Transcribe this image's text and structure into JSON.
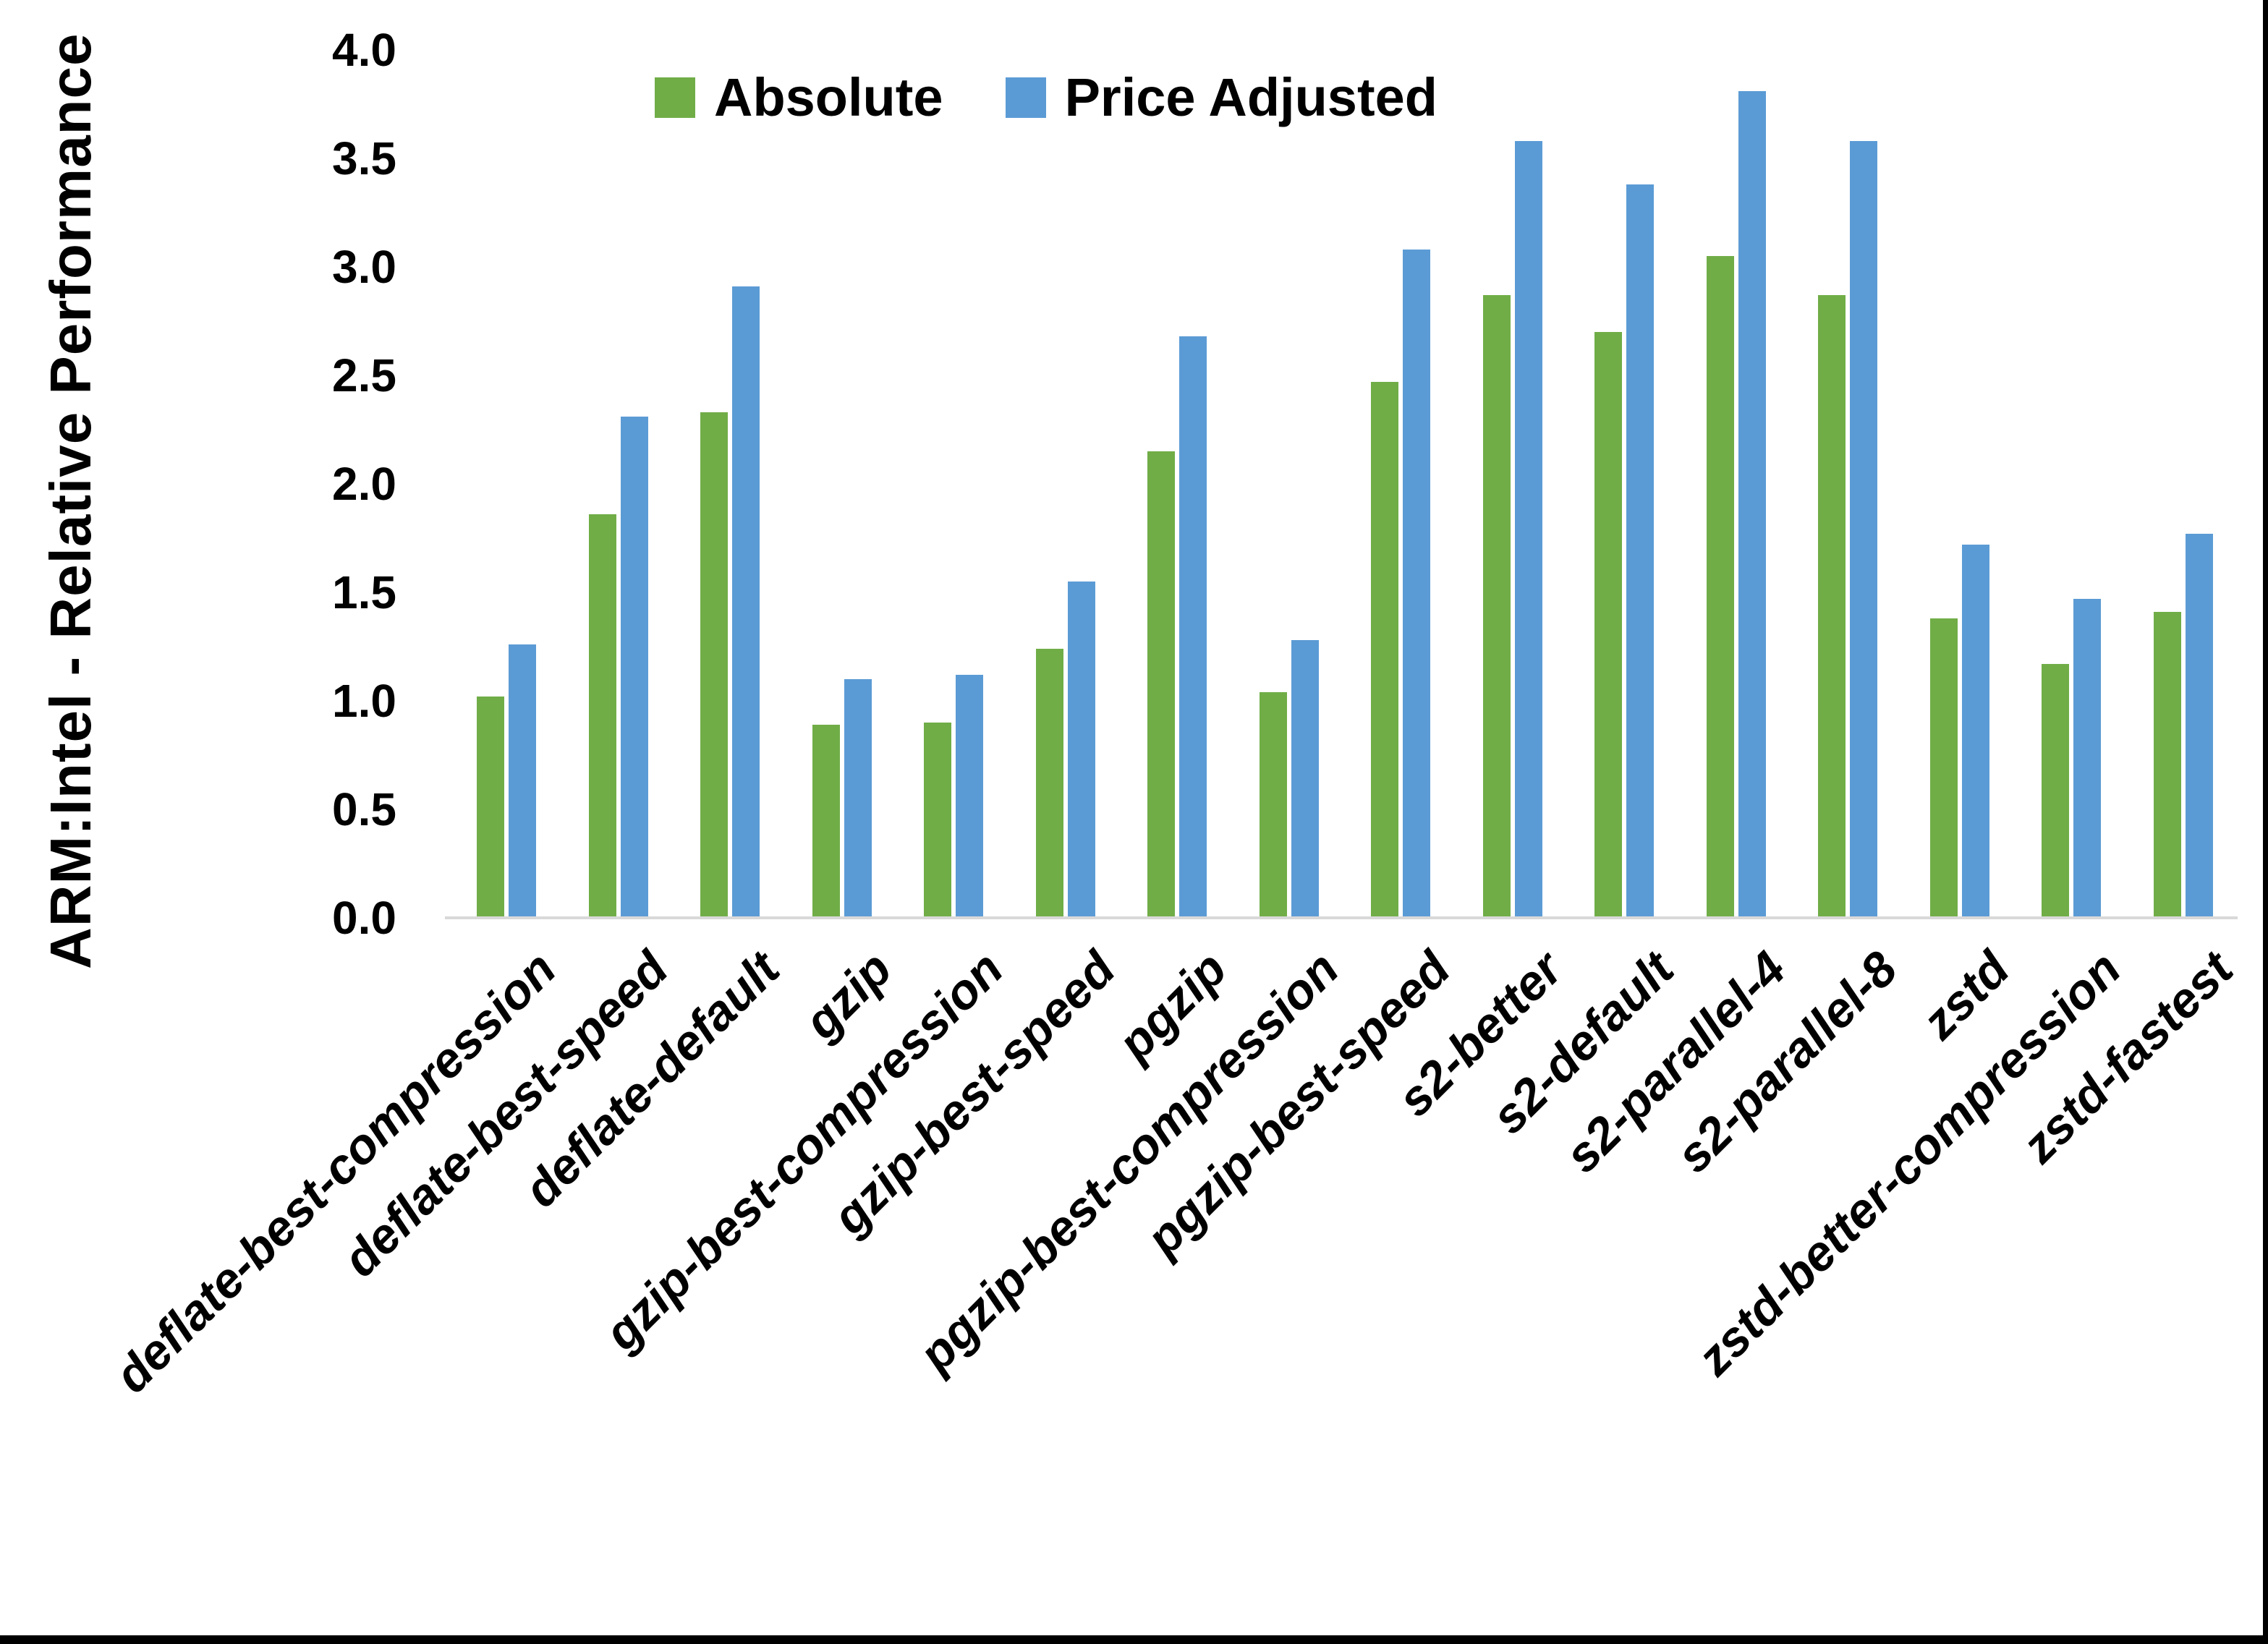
{
  "figure": {
    "background": "#ffffff",
    "border_right_color": "#000000",
    "border_bottom_color": "#000000",
    "axis_line_color": "#d9d9d9"
  },
  "y_axis": {
    "title": "ARM:Intel - Relative Performance",
    "tick_labels": [
      "0.0",
      "0.5",
      "1.0",
      "1.5",
      "2.0",
      "2.5",
      "3.0",
      "3.5",
      "4.0"
    ],
    "min": 0.0,
    "max": 4.0
  },
  "legend": {
    "items": [
      {
        "label": "Absolute",
        "color": "#70AD47"
      },
      {
        "label": "Price Adjusted",
        "color": "#5B9BD5"
      }
    ]
  },
  "chart_data": {
    "type": "bar",
    "title": "",
    "xlabel": "",
    "ylabel": "ARM:Intel - Relative Performance",
    "ylim": [
      0,
      4
    ],
    "ytick_step": 0.5,
    "grid": false,
    "legend_position": "top-center",
    "categories": [
      "deflate-best-compression",
      "deflate-best-speed",
      "deflate-default",
      "gzip",
      "gzip-best-compression",
      "gzip-best-speed",
      "pgzip",
      "pgzip-best-compression",
      "pgzip-best-speed",
      "s2-better",
      "s2-default",
      "s2-parallel-4",
      "s2-parallel-8",
      "zstd",
      "zstd-better-compression",
      "zstd-fastest"
    ],
    "series": [
      {
        "name": "Absolute",
        "color": "#70AD47",
        "values": [
          1.02,
          1.86,
          2.33,
          0.89,
          0.9,
          1.24,
          2.15,
          1.04,
          2.47,
          2.87,
          2.7,
          3.05,
          2.87,
          1.38,
          1.17,
          1.41
        ]
      },
      {
        "name": "Price Adjusted",
        "color": "#5B9BD5",
        "values": [
          1.26,
          2.31,
          2.91,
          1.1,
          1.12,
          1.55,
          2.68,
          1.28,
          3.08,
          3.58,
          3.38,
          3.81,
          3.58,
          1.72,
          1.47,
          1.77
        ]
      }
    ]
  }
}
